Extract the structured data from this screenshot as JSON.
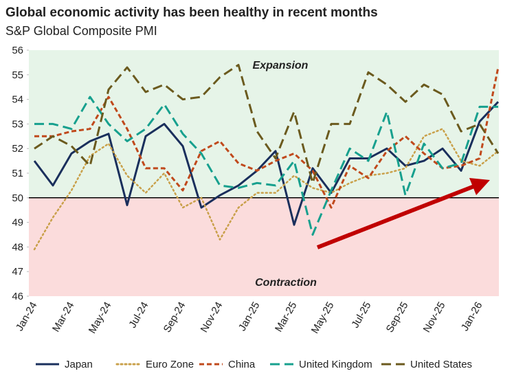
{
  "chart_data": {
    "type": "line",
    "title": "Global economic activity has been healthy in recent months",
    "subtitle": "S&P Global Composite PMI",
    "annotations": [
      "Expansion",
      "Contraction"
    ],
    "threshold": 50,
    "categories": [
      "Jan-24",
      null,
      "Mar-24",
      null,
      "May-24",
      null,
      "Jul-24",
      null,
      "Sep-24",
      null,
      "Nov-24",
      null,
      "Jan-25",
      null,
      "Mar-25",
      null,
      "May-25",
      null,
      "Jul-25",
      null,
      "Sep-25",
      null,
      "Nov-25",
      null,
      "Jan-26",
      null
    ],
    "ylim": [
      46,
      56
    ],
    "yticks": [
      46,
      47,
      48,
      49,
      50,
      51,
      52,
      53,
      54,
      55,
      56
    ],
    "legend": "bottom",
    "series": [
      {
        "name": "Japan",
        "color": "#1a2f5c",
        "style": "solid",
        "values": [
          51.5,
          50.5,
          51.8,
          52.3,
          52.6,
          49.7,
          52.5,
          53.0,
          52.1,
          49.6,
          50.1,
          50.5,
          51.1,
          51.9,
          48.9,
          51.2,
          50.2,
          51.6,
          51.6,
          52.0,
          51.3,
          51.5,
          52.0,
          51.1,
          53.1,
          53.9
        ]
      },
      {
        "name": "Euro Zone",
        "color": "#c9a04a",
        "style": "dotted",
        "values": [
          47.9,
          49.2,
          50.3,
          51.7,
          52.2,
          50.9,
          50.2,
          51.0,
          49.6,
          50.0,
          48.3,
          49.6,
          50.2,
          50.2,
          50.9,
          50.4,
          50.2,
          50.6,
          50.9,
          51.0,
          51.2,
          52.5,
          52.8,
          51.5,
          51.3,
          51.9
        ]
      },
      {
        "name": "China",
        "color": "#c0491c",
        "style": "dashed",
        "values": [
          52.5,
          52.5,
          52.7,
          52.8,
          54.1,
          52.8,
          51.2,
          51.2,
          50.3,
          51.9,
          52.3,
          51.4,
          51.1,
          51.5,
          51.8,
          51.1,
          49.6,
          51.3,
          50.8,
          51.9,
          52.5,
          51.8,
          51.2,
          51.3,
          51.6,
          55.3
        ]
      },
      {
        "name": "United Kingdom",
        "color": "#17a08e",
        "style": "long-dashed",
        "values": [
          53.0,
          53.0,
          52.8,
          54.1,
          53.0,
          52.3,
          52.8,
          53.8,
          52.6,
          51.8,
          50.5,
          50.4,
          50.6,
          50.5,
          51.5,
          48.5,
          50.3,
          52.0,
          51.5,
          53.5,
          50.1,
          52.2,
          51.2,
          51.4,
          53.7,
          53.7
        ]
      },
      {
        "name": "United States",
        "color": "#6b5a1e",
        "style": "long-dashed",
        "values": [
          52.0,
          52.5,
          52.1,
          51.3,
          54.4,
          55.3,
          54.3,
          54.6,
          54.0,
          54.1,
          54.9,
          55.4,
          52.7,
          51.6,
          53.5,
          50.6,
          53.0,
          53.0,
          55.1,
          54.6,
          53.9,
          54.6,
          54.2,
          52.7,
          53.0,
          51.8
        ]
      }
    ]
  }
}
